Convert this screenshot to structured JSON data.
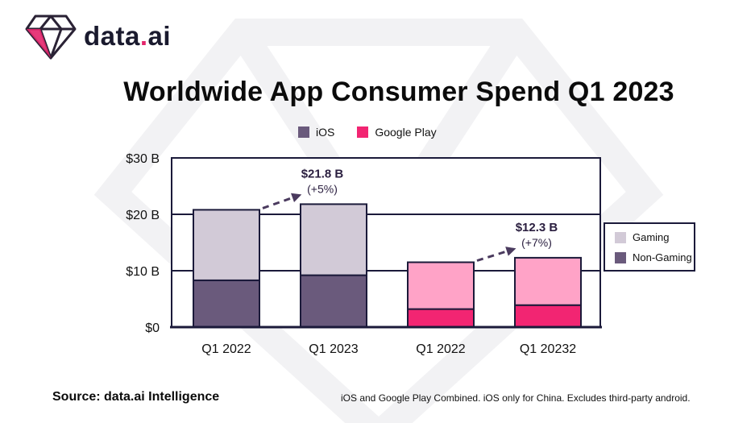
{
  "brand": {
    "name_main": "data",
    "name_dot": ".",
    "name_tail": "ai"
  },
  "colors": {
    "ios_gaming": "#d2cad7",
    "ios_nongaming": "#6a5a7c",
    "gp_gaming": "#ffa3c7",
    "gp_nongaming": "#f22572",
    "border": "#1b1a3a",
    "annotation": "#4a3a5e",
    "brand_pink": "#e3256b"
  },
  "legend_top": [
    {
      "label": "iOS",
      "color": "#6a5a7c"
    },
    {
      "label": "Google Play",
      "color": "#f22572"
    }
  ],
  "legend_box": [
    {
      "label": "Gaming",
      "color": "#d2cad7"
    },
    {
      "label": "Non-Gaming",
      "color": "#6a5a7c"
    }
  ],
  "chart_data": {
    "type": "bar",
    "stacked": true,
    "title": "Worldwide App Consumer Spend Q1 2023",
    "categories": [
      "Q1 2022",
      "Q1 2023",
      "Q1 2022",
      "Q1 20232"
    ],
    "platform": [
      "iOS",
      "iOS",
      "Google Play",
      "Google Play"
    ],
    "series": [
      {
        "name": "Non-Gaming",
        "values": [
          8.3,
          9.2,
          3.2,
          3.9
        ]
      },
      {
        "name": "Gaming",
        "values": [
          12.5,
          12.6,
          8.3,
          8.4
        ]
      }
    ],
    "totals": [
      20.8,
      21.8,
      11.5,
      12.3
    ],
    "ylim": [
      0,
      30
    ],
    "yticks": [
      0,
      10,
      20,
      30
    ],
    "ytick_labels": [
      "$0",
      "$10 B",
      "$20 B",
      "$30 B"
    ],
    "annotations": [
      {
        "bar": 1,
        "value": "$21.8 B",
        "change": "(+5%)"
      },
      {
        "bar": 3,
        "value": "$12.3 B",
        "change": "(+7%)"
      }
    ]
  },
  "footer": {
    "source": "Source: data.ai Intelligence",
    "note": "iOS and Google Play Combined. iOS only for China. Excludes third-party android."
  }
}
